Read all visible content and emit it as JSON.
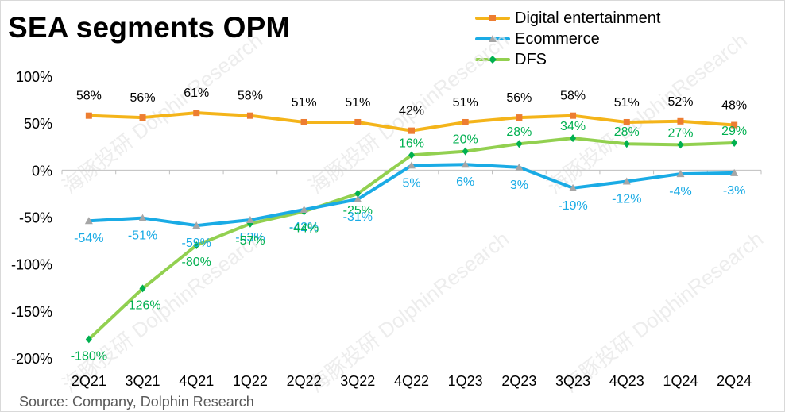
{
  "title": "SEA segments OPM",
  "source": "Source: Company, Dolphin Research",
  "watermark": "海豚投研 DolphinResearch",
  "chart_data": {
    "type": "line",
    "title": "SEA segments OPM",
    "categories": [
      "2Q21",
      "3Q21",
      "4Q21",
      "1Q22",
      "2Q22",
      "3Q22",
      "4Q22",
      "1Q23",
      "2Q23",
      "3Q23",
      "4Q23",
      "1Q24",
      "2Q24"
    ],
    "ylim": [
      -200,
      100
    ],
    "yticks": [
      100,
      50,
      0,
      -50,
      -100,
      -150,
      -200
    ],
    "ytick_labels": [
      "100%",
      "50%",
      "0%",
      "-50%",
      "-100%",
      "-150%",
      "-200%"
    ],
    "grid": false,
    "legend_position": "top-right",
    "series": [
      {
        "name": "Digital entertainment",
        "color": "#f4b41a",
        "marker": "square",
        "marker_color": "#ed7d31",
        "label_color": "#000000",
        "values": [
          58,
          56,
          61,
          58,
          51,
          51,
          42,
          51,
          56,
          58,
          51,
          52,
          48
        ],
        "labels": [
          "58%",
          "56%",
          "61%",
          "58%",
          "51%",
          "51%",
          "42%",
          "51%",
          "56%",
          "58%",
          "51%",
          "52%",
          "48%"
        ]
      },
      {
        "name": "Ecommerce",
        "color": "#1aabe5",
        "marker": "triangle",
        "marker_color": "#a6a6a6",
        "label_color": "#1aabe5",
        "values": [
          -54,
          -51,
          -59,
          -53,
          -42,
          -31,
          5,
          6,
          3,
          -19,
          -12,
          -4,
          -3
        ],
        "labels": [
          "-54%",
          "-51%",
          "-59%",
          "-53%",
          "-42%",
          "-31%",
          "5%",
          "6%",
          "3%",
          "-19%",
          "-12%",
          "-4%",
          "-3%"
        ]
      },
      {
        "name": "DFS",
        "color": "#92d050",
        "marker": "diamond",
        "marker_color": "#00b050",
        "label_color": "#00b050",
        "values": [
          -180,
          -126,
          -80,
          -57,
          -44,
          -25,
          16,
          20,
          28,
          34,
          28,
          27,
          29
        ],
        "labels": [
          "-180%",
          "-126%",
          "-80%",
          "-57%",
          "-44%",
          "-25%",
          "16%",
          "20%",
          "28%",
          "34%",
          "28%",
          "27%",
          "29%"
        ]
      }
    ]
  }
}
